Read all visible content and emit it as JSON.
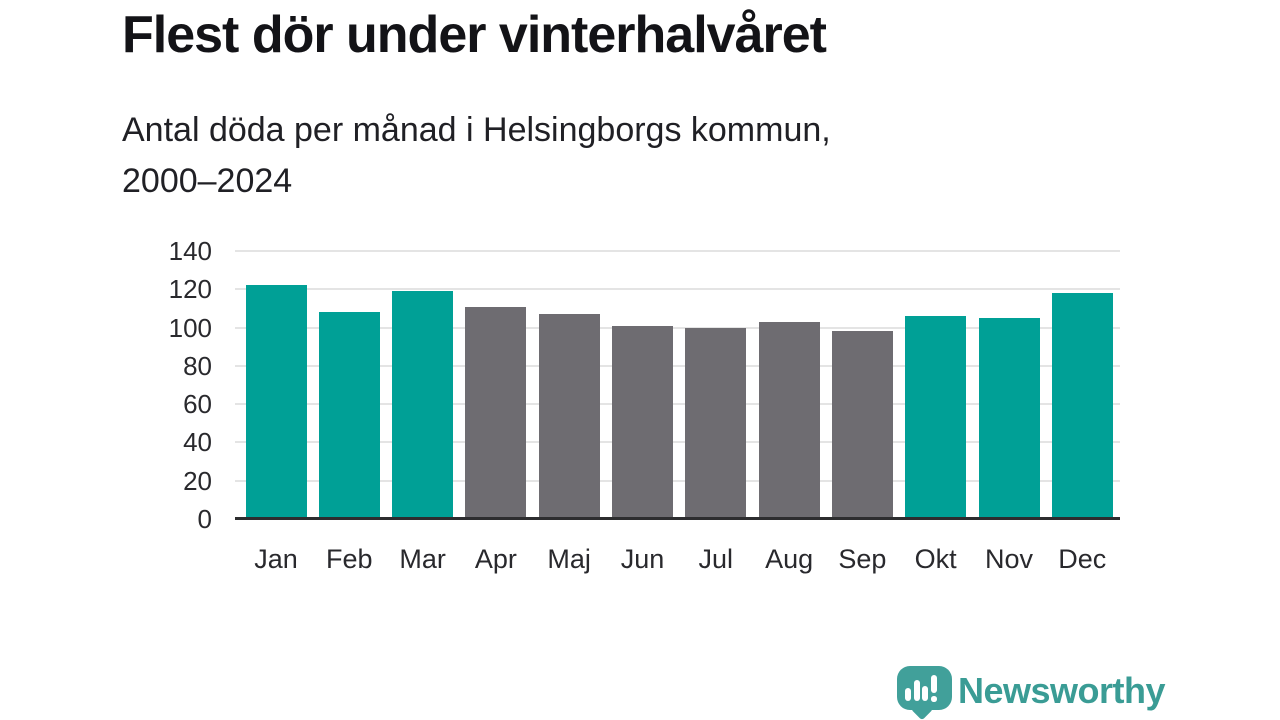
{
  "header": {
    "title": "Flest dör under vinterhalvåret",
    "subtitle_line1": "Antal döda per månad i Helsingborgs kommun,",
    "subtitle_line2": "2000–2024"
  },
  "chart_data": {
    "type": "bar",
    "title": "Flest dör under vinterhalvåret",
    "subtitle": "Antal döda per månad i Helsingborgs kommun, 2000–2024",
    "categories": [
      "Jan",
      "Feb",
      "Mar",
      "Apr",
      "Maj",
      "Jun",
      "Jul",
      "Aug",
      "Sep",
      "Okt",
      "Nov",
      "Dec"
    ],
    "values": [
      122,
      108,
      119,
      111,
      107,
      101,
      100,
      103,
      98,
      106,
      105,
      118
    ],
    "colors": [
      "#00a096",
      "#00a096",
      "#00a096",
      "#6e6c71",
      "#6e6c71",
      "#6e6c71",
      "#6e6c71",
      "#6e6c71",
      "#6e6c71",
      "#00a096",
      "#00a096",
      "#00a096"
    ],
    "highlight_color": "#00a096",
    "muted_color": "#6e6c71",
    "xlabel": "",
    "ylabel": "",
    "ylim": [
      0,
      140
    ],
    "yticks": [
      0,
      20,
      40,
      60,
      80,
      100,
      120,
      140
    ],
    "grid": true,
    "gridline_color": "#e4e4e4",
    "axis_line_color": "#2d2d2f",
    "legend": "none"
  },
  "footer": {
    "brand": "Newsworthy",
    "brand_color": "#3a9c95",
    "logo_color": "#41a09a",
    "logo_icon": "speech-bubble-bar-chart"
  }
}
